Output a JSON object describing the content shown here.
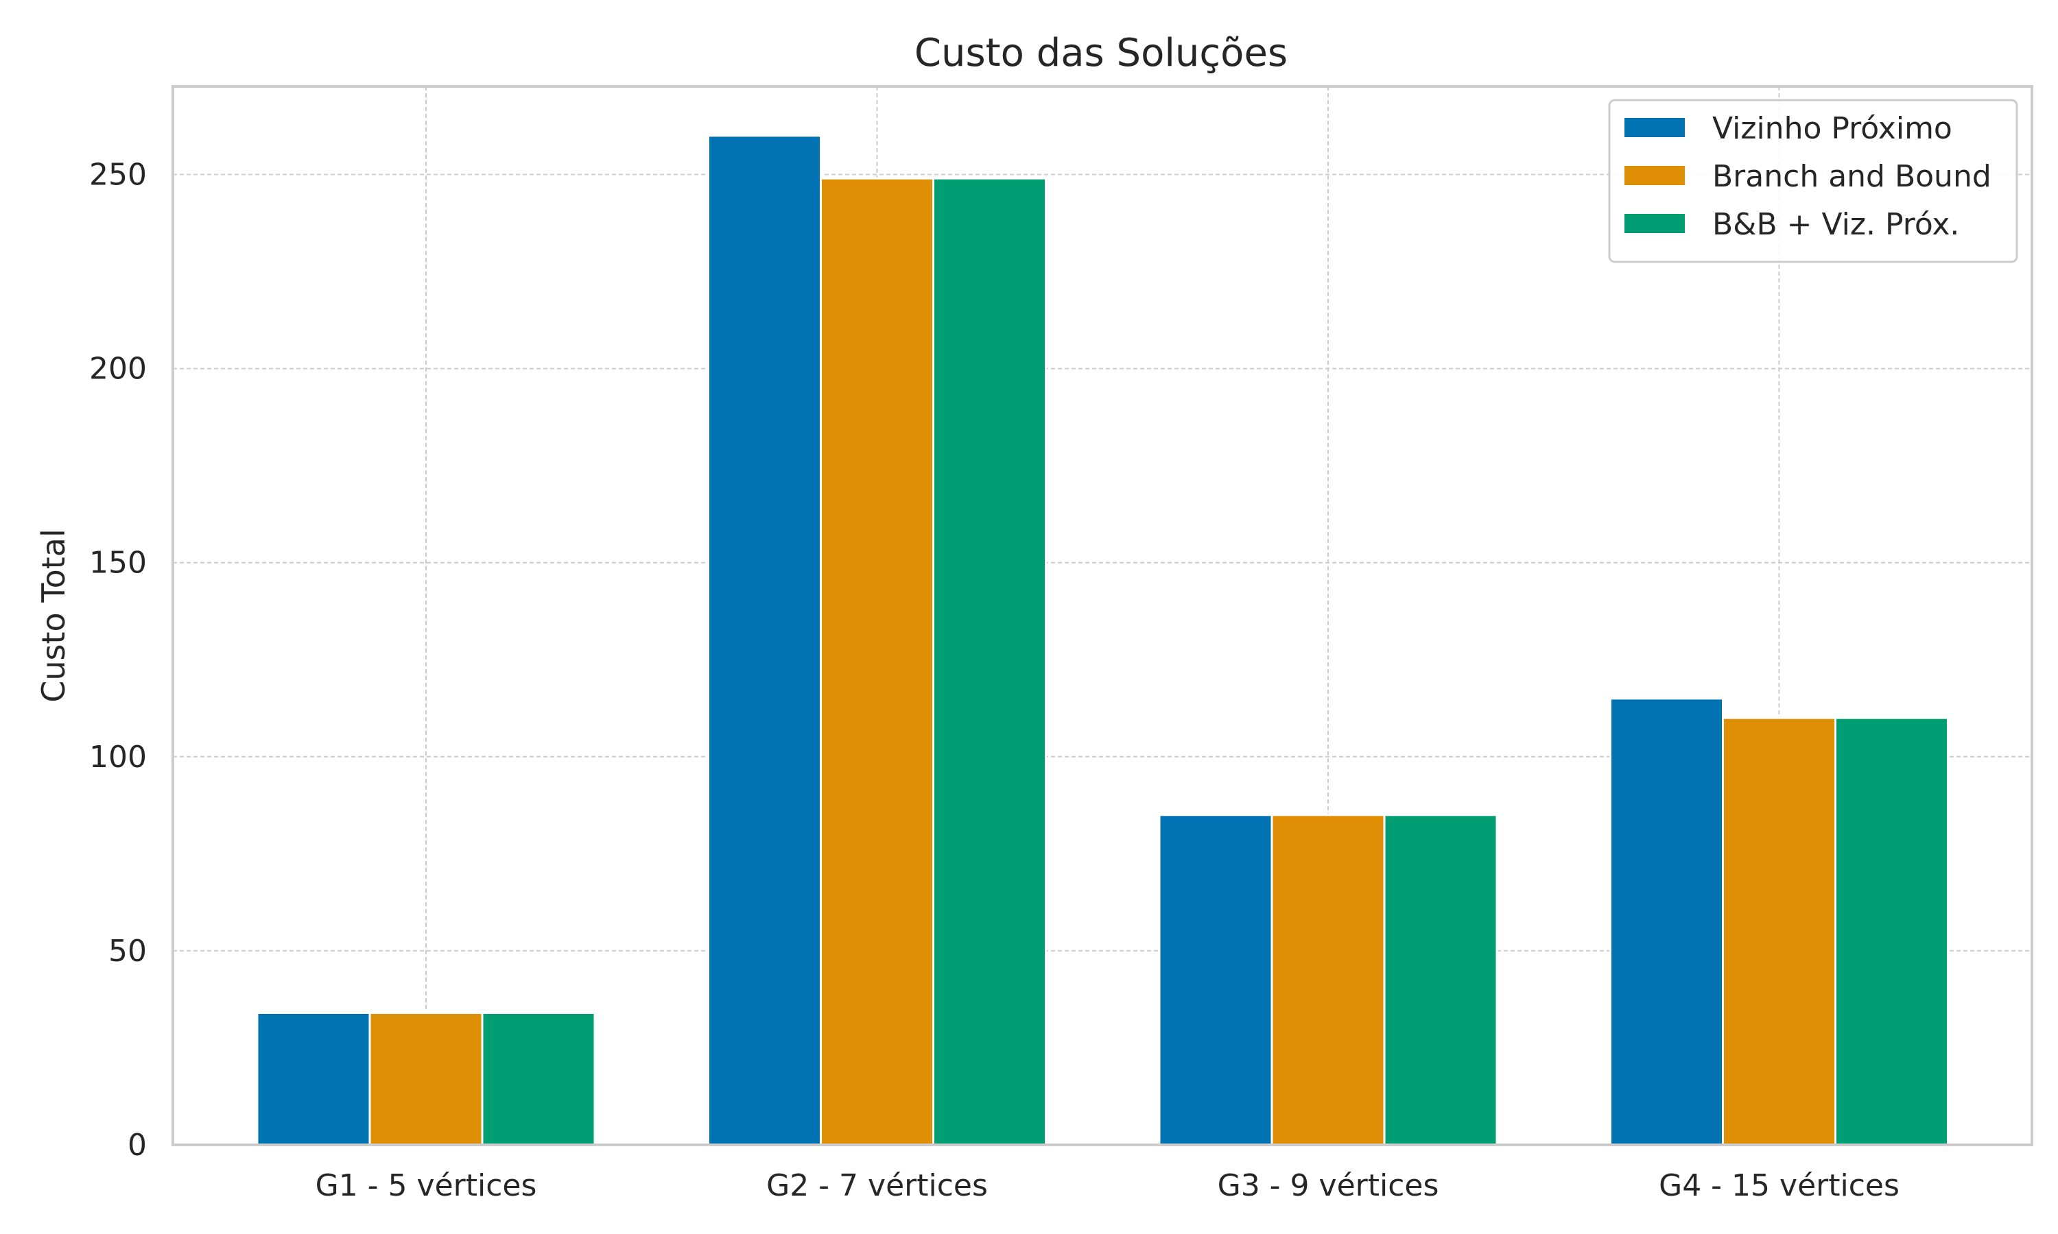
{
  "chart_data": {
    "type": "bar",
    "title": "Custo das Soluções",
    "xlabel": "",
    "ylabel": "Custo Total",
    "categories": [
      "G1 - 5 vértices",
      "G2 - 7 vértices",
      "G3 - 9 vértices",
      "G4 - 15 vértices"
    ],
    "series": [
      {
        "name": "Vizinho Próximo",
        "values": [
          34,
          260,
          85,
          115
        ],
        "color": "#0173b2"
      },
      {
        "name": "Branch and Bound",
        "values": [
          34,
          249,
          85,
          110
        ],
        "color": "#de8f05"
      },
      {
        "name": "B&B + Viz. Próx.",
        "values": [
          34,
          249,
          85,
          110
        ],
        "color": "#029e73"
      }
    ],
    "ylim": [
      0,
      272.7
    ],
    "yticks": [
      0,
      50,
      100,
      150,
      200,
      250
    ],
    "grid": true,
    "legend_position": "top-right"
  }
}
